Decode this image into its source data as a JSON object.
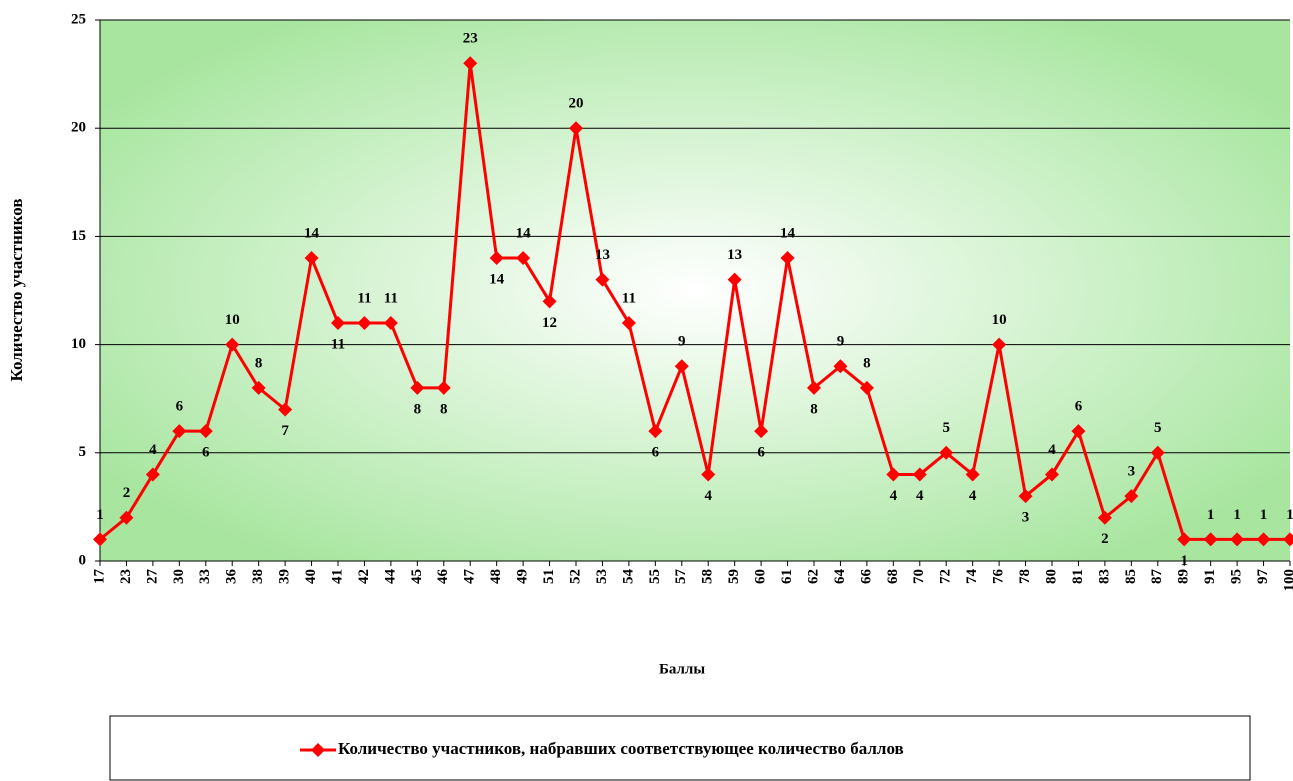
{
  "chart_data": {
    "type": "line",
    "x_label": "Баллы",
    "y_label": "Количество участников",
    "categories": [
      "17",
      "23",
      "27",
      "30",
      "33",
      "36",
      "38",
      "39",
      "40",
      "41",
      "42",
      "44",
      "45",
      "46",
      "47",
      "48",
      "49",
      "51",
      "52",
      "53",
      "54",
      "55",
      "57",
      "58",
      "59",
      "60",
      "61",
      "62",
      "64",
      "66",
      "68",
      "70",
      "72",
      "74",
      "76",
      "78",
      "80",
      "81",
      "83",
      "85",
      "87",
      "89",
      "91",
      "95",
      "97",
      "100"
    ],
    "series": [
      {
        "name": "Количество участников, набравших соответствующее количество баллов",
        "color": "#ff0000",
        "values": [
          1,
          2,
          4,
          6,
          6,
          10,
          8,
          7,
          14,
          11,
          11,
          11,
          8,
          8,
          23,
          14,
          14,
          12,
          20,
          13,
          11,
          6,
          9,
          4,
          13,
          6,
          14,
          8,
          9,
          8,
          4,
          4,
          5,
          4,
          10,
          3,
          4,
          6,
          2,
          3,
          5,
          1,
          1,
          1,
          1,
          1
        ]
      }
    ],
    "ylim": [
      0,
      25
    ],
    "yticks": [
      0,
      5,
      10,
      15,
      20,
      25
    ],
    "grid": true,
    "legend": "bottom"
  }
}
